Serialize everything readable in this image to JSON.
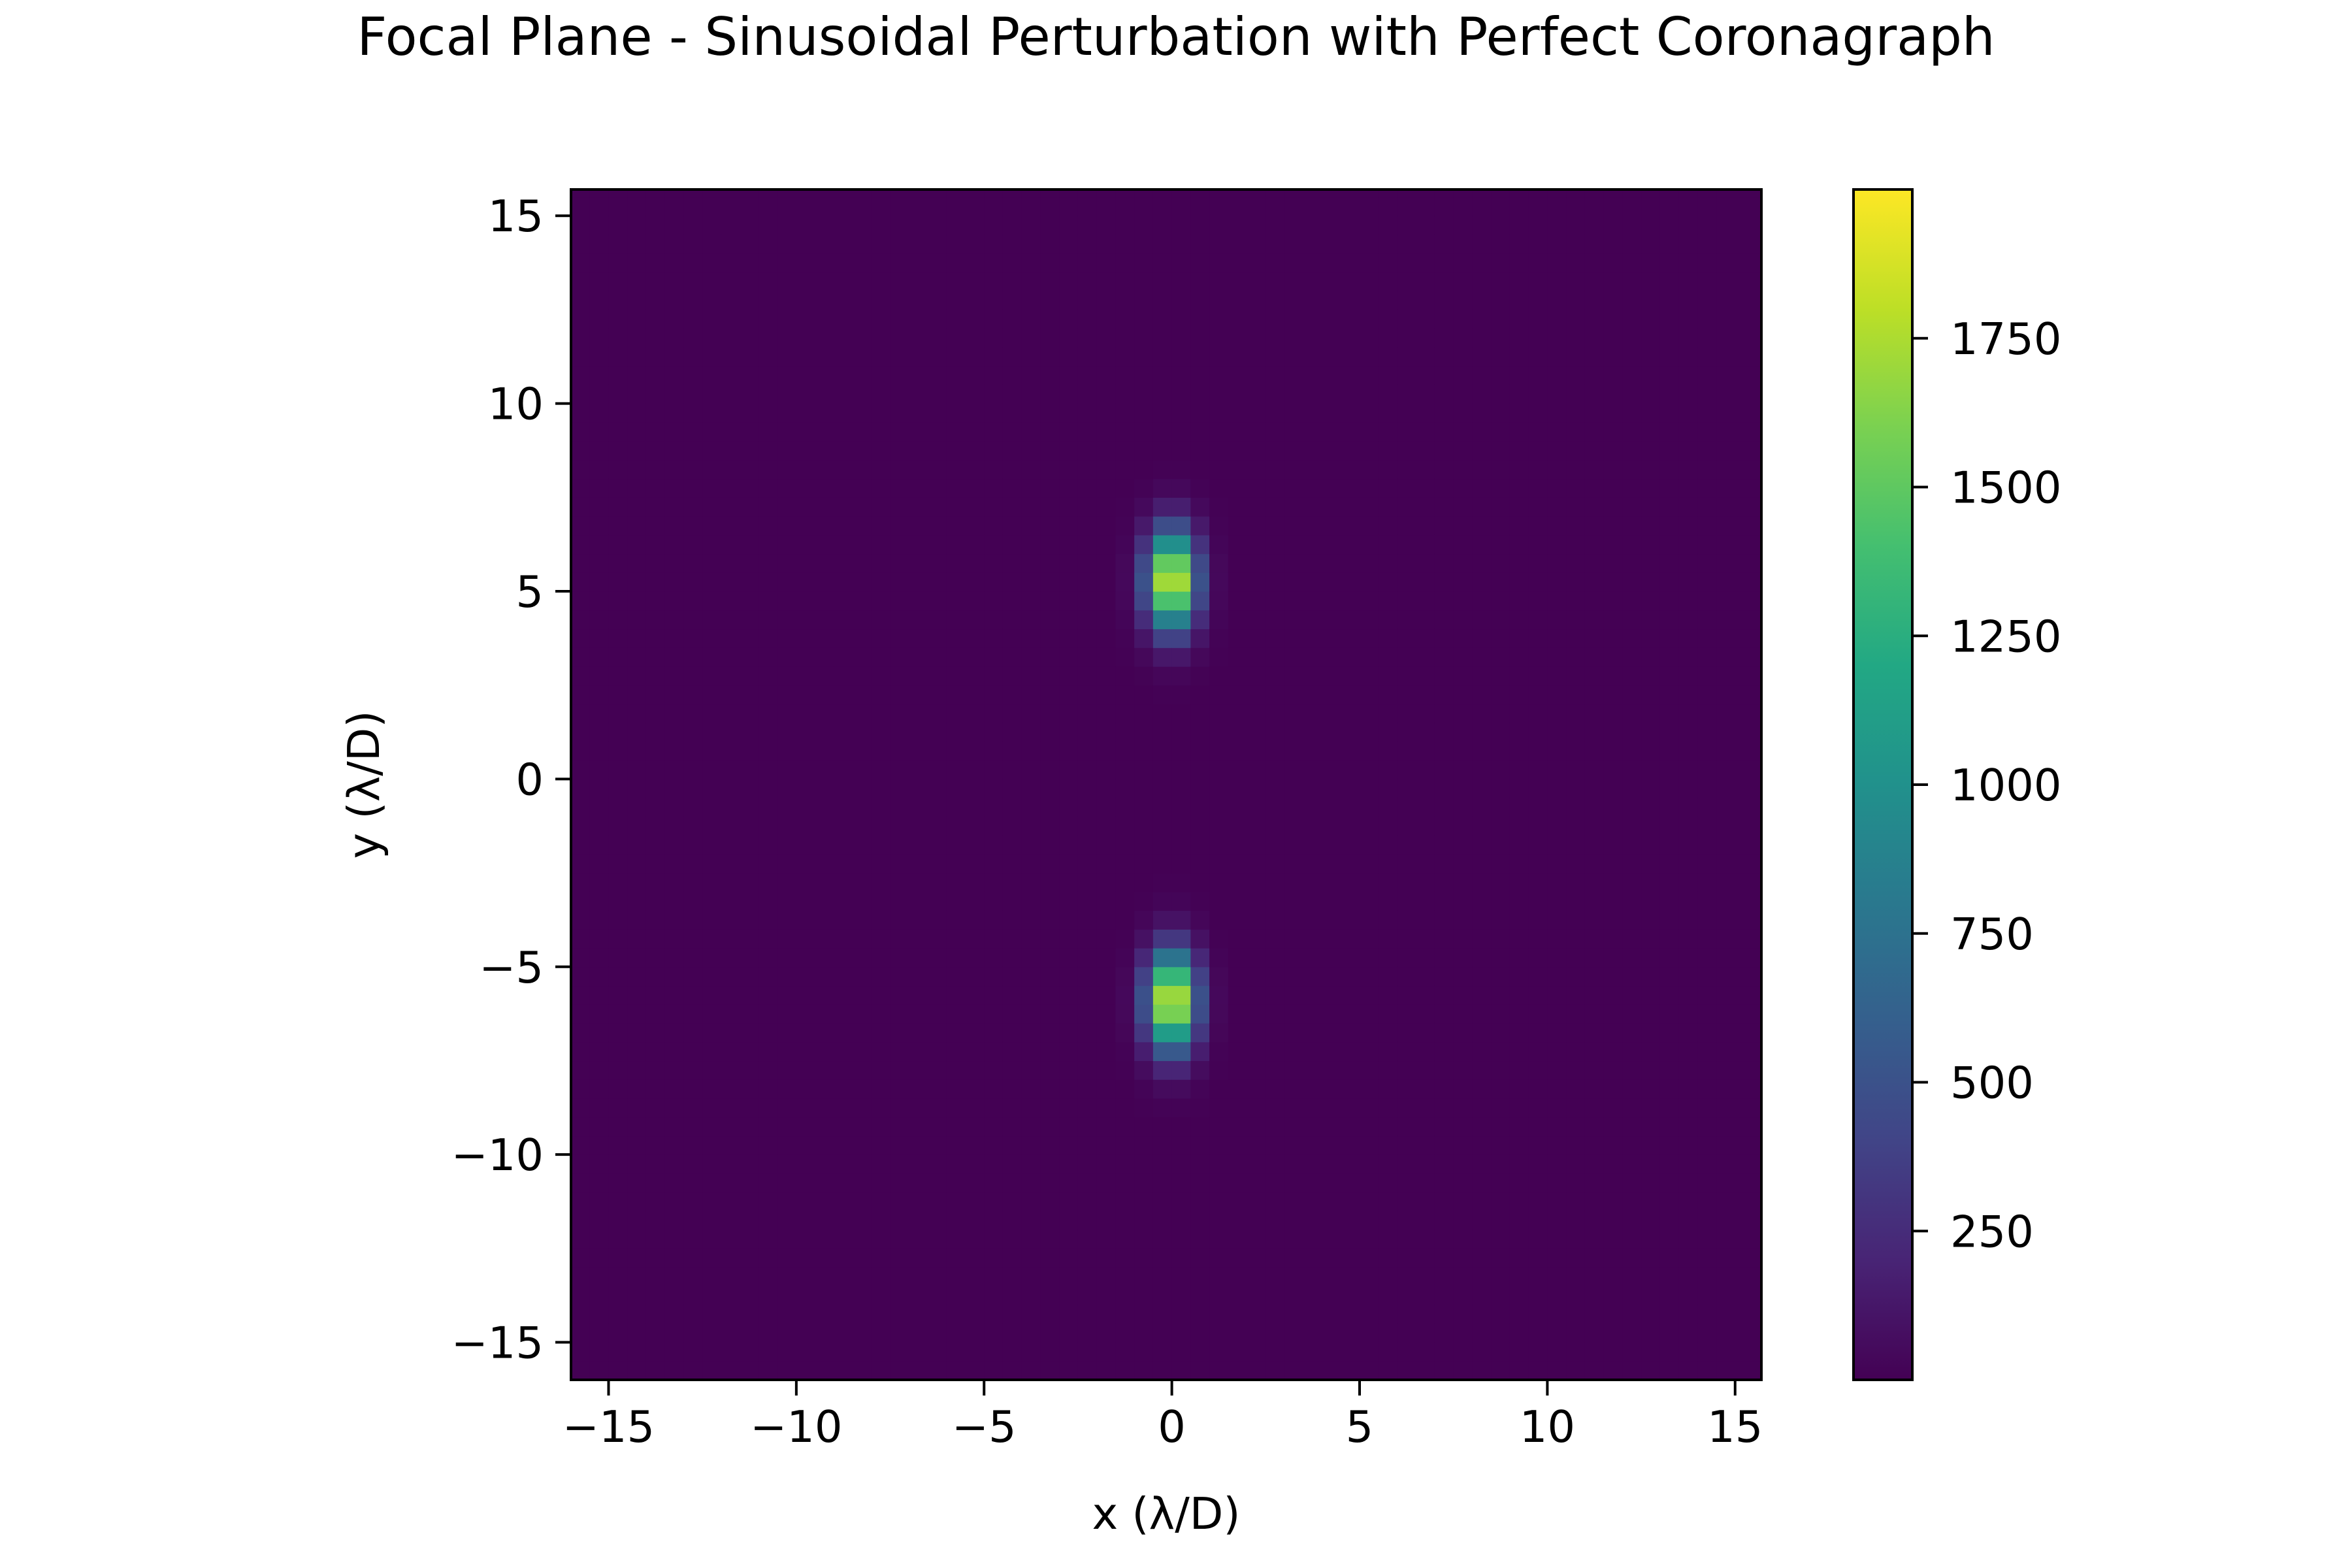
{
  "chart_data": {
    "type": "heatmap",
    "title": "Focal Plane - Sinusoidal Perturbation with Perfect Coronagraph",
    "xlabel": "x (λ/D)",
    "ylabel": "y (λ/D)",
    "xlim": [
      -16,
      15.7
    ],
    "ylim": [
      -16,
      15.7
    ],
    "xticks": [
      -15,
      -10,
      -5,
      0,
      5,
      10,
      15
    ],
    "yticks": [
      -15,
      -10,
      -5,
      0,
      5,
      10,
      15
    ],
    "xtick_labels": [
      "−15",
      "−10",
      "−5",
      "0",
      "5",
      "10",
      "15"
    ],
    "ytick_labels": [
      "−15",
      "−10",
      "−5",
      "0",
      "5",
      "10",
      "15"
    ],
    "grid": false,
    "colormap": "viridis",
    "colorbar": {
      "range": [
        0,
        2000
      ],
      "ticks": [
        250,
        500,
        750,
        1000,
        1250,
        1500,
        1750
      ],
      "tick_labels": [
        "250",
        "500",
        "750",
        "1000",
        "1250",
        "1500",
        "1750"
      ]
    },
    "features": [
      {
        "x": 0,
        "y": 5.3,
        "peak": 2000,
        "sx": 0.45,
        "sy": 0.9
      },
      {
        "x": 0,
        "y": -5.9,
        "peak": 2000,
        "sx": 0.45,
        "sy": 0.9
      }
    ],
    "background": 0
  }
}
